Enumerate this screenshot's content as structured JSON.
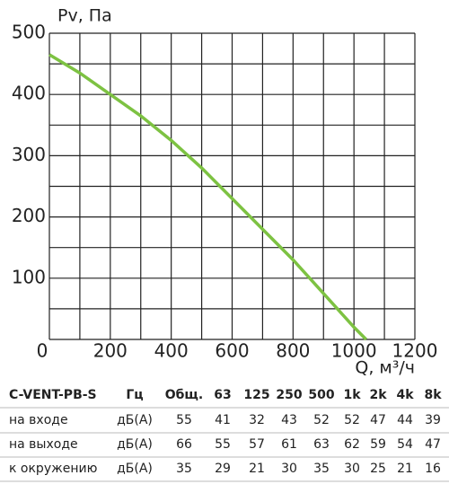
{
  "chart_data": {
    "type": "line",
    "y_label": "Pv, Па",
    "x_label": "Q, м³/ч",
    "x": [
      0,
      100,
      200,
      300,
      400,
      500,
      600,
      700,
      800,
      900,
      1000,
      1040
    ],
    "values": [
      465,
      435,
      400,
      365,
      325,
      280,
      230,
      180,
      130,
      75,
      20,
      0
    ],
    "color": "#7dc242",
    "xlim": [
      0,
      1200
    ],
    "ylim": [
      0,
      500
    ],
    "xticks": [
      0,
      200,
      400,
      600,
      800,
      1000,
      1200
    ],
    "yticks": [
      100,
      200,
      300,
      400,
      500
    ],
    "x_grid": [
      0,
      100,
      200,
      300,
      400,
      500,
      600,
      700,
      800,
      900,
      1000,
      1100,
      1200
    ],
    "y_grid": [
      0,
      50,
      100,
      150,
      200,
      250,
      300,
      350,
      400,
      450,
      500
    ]
  },
  "table": {
    "header": [
      "C-VENT-PB-S",
      "Гц",
      "Общ.",
      "63",
      "125",
      "250",
      "500",
      "1k",
      "2k",
      "4k",
      "8k"
    ],
    "rows": [
      [
        "на входе",
        "дБ(А)",
        "55",
        "41",
        "32",
        "43",
        "52",
        "52",
        "47",
        "44",
        "39"
      ],
      [
        "на выходе",
        "дБ(А)",
        "66",
        "55",
        "57",
        "61",
        "63",
        "62",
        "59",
        "54",
        "47"
      ],
      [
        "к окружению",
        "дБ(А)",
        "35",
        "29",
        "21",
        "30",
        "35",
        "30",
        "25",
        "21",
        "16"
      ]
    ]
  }
}
